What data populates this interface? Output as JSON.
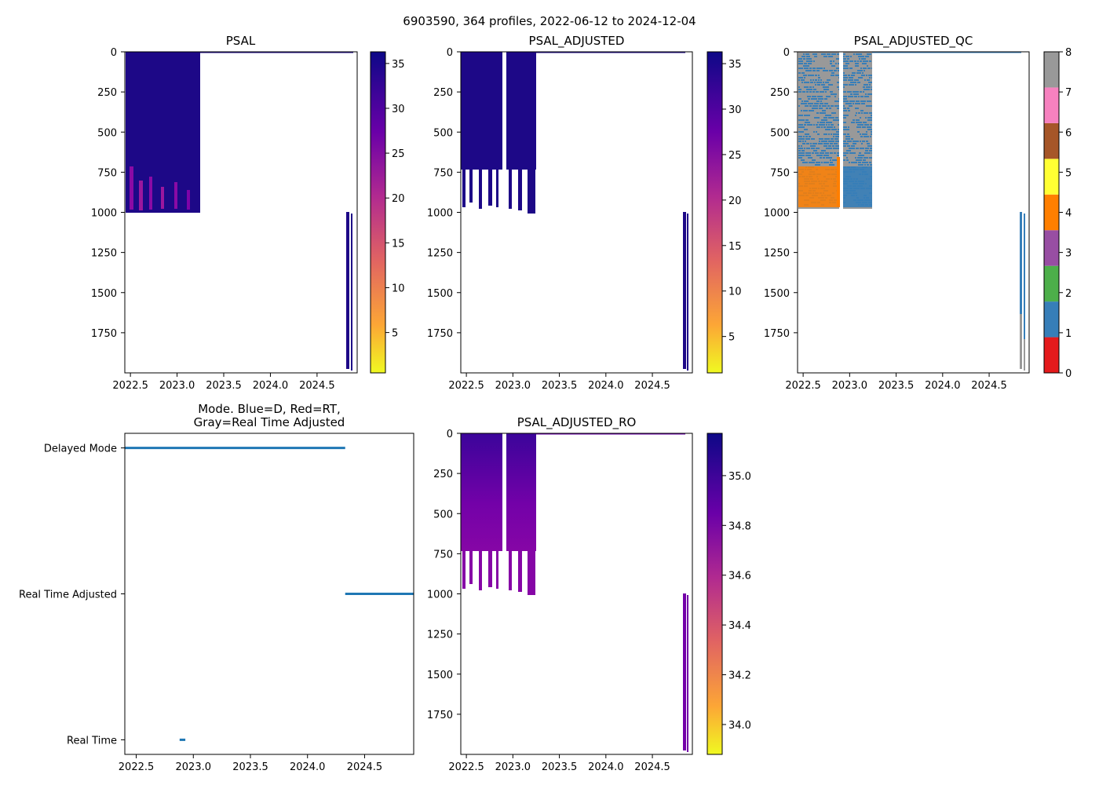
{
  "figure": {
    "suptitle": "6903590, 364 profiles, 2022-06-12 to 2024-12-04"
  },
  "chart_data": [
    {
      "type": "heatmap",
      "title": "PSAL",
      "x_ticks": [
        "2022.5",
        "2023.0",
        "2023.5",
        "2024.0",
        "2024.5"
      ],
      "x_tick_values": [
        2022.5,
        2023.0,
        2023.5,
        2024.0,
        2024.5
      ],
      "xlim": [
        2022.44,
        2024.93
      ],
      "y_ticks": [
        "0",
        "250",
        "500",
        "750",
        "1000",
        "1250",
        "1500",
        "1750"
      ],
      "y_tick_values": [
        0,
        250,
        500,
        750,
        1000,
        1250,
        1500,
        1750
      ],
      "ylim": [
        2000,
        0
      ],
      "colorbar": {
        "colormap": "plasma_r",
        "range": [
          0.5,
          36.3
        ],
        "ticks": [
          "5",
          "10",
          "15",
          "20",
          "25",
          "30",
          "35"
        ],
        "tick_values": [
          5,
          10,
          15,
          20,
          25,
          30,
          35
        ]
      },
      "fill_color": "#1d0887",
      "blocks": [
        {
          "x0": 2022.44,
          "x1": 2023.25,
          "depth_top": 0,
          "depth_bottom": 1000
        },
        {
          "x0": 2024.82,
          "x1": 2024.86,
          "depth_top": 1010,
          "depth_bottom": 1965
        }
      ],
      "low_salinity_band": {
        "depth_range": [
          730,
          985
        ],
        "color": "#8b0aa5"
      }
    },
    {
      "type": "heatmap",
      "title": "PSAL_ADJUSTED",
      "x_ticks": [
        "2022.5",
        "2023.0",
        "2023.5",
        "2024.0",
        "2024.5"
      ],
      "x_tick_values": [
        2022.5,
        2023.0,
        2023.5,
        2024.0,
        2024.5
      ],
      "xlim": [
        2022.44,
        2024.93
      ],
      "y_ticks": [
        "0",
        "250",
        "500",
        "750",
        "1000",
        "1250",
        "1500",
        "1750"
      ],
      "y_tick_values": [
        0,
        250,
        500,
        750,
        1000,
        1250,
        1500,
        1750
      ],
      "ylim": [
        2000,
        0
      ],
      "colorbar": {
        "colormap": "plasma_r",
        "range": [
          1.0,
          36.3
        ],
        "ticks": [
          "5",
          "10",
          "15",
          "20",
          "25",
          "30",
          "35"
        ],
        "tick_values": [
          5,
          10,
          15,
          20,
          25,
          30,
          35
        ]
      },
      "fill_color": "#1d0887",
      "blocks": [
        {
          "x0": 2022.44,
          "x1": 2022.89,
          "depth_top": 0,
          "depth_bottom": 740
        },
        {
          "x0": 2022.92,
          "x1": 2023.25,
          "depth_top": 0,
          "depth_bottom": 740
        },
        {
          "x0": 2024.82,
          "x1": 2024.86,
          "depth_top": 1010,
          "depth_bottom": 1965
        }
      ]
    },
    {
      "type": "heatmap",
      "title": "PSAL_ADJUSTED_QC",
      "x_ticks": [
        "2022.5",
        "2023.0",
        "2023.5",
        "2024.0",
        "2024.5"
      ],
      "x_tick_values": [
        2022.5,
        2023.0,
        2023.5,
        2024.0,
        2024.5
      ],
      "xlim": [
        2022.44,
        2024.93
      ],
      "y_ticks": [
        "0",
        "250",
        "500",
        "750",
        "1000",
        "1250",
        "1500",
        "1750"
      ],
      "y_tick_values": [
        0,
        250,
        500,
        750,
        1000,
        1250,
        1500,
        1750
      ],
      "ylim": [
        2000,
        0
      ],
      "colorbar": {
        "colormap": "Set1 (discrete)",
        "range": [
          0,
          8
        ],
        "ticks": [
          "0",
          "1",
          "2",
          "3",
          "4",
          "5",
          "6",
          "7",
          "8"
        ],
        "tick_values": [
          0,
          1,
          2,
          3,
          4,
          5,
          6,
          7,
          8
        ],
        "colors": [
          "#e41a1c",
          "#377eb8",
          "#4daf4a",
          "#984ea3",
          "#ff7f00",
          "#ffff33",
          "#a65628",
          "#f781bf",
          "#999999"
        ]
      },
      "flag_colors": {
        "flag_1": "#377eb8",
        "flag_4": "#ff7f00",
        "flag_8": "#999999"
      }
    },
    {
      "type": "scatter",
      "title": "Mode. Blue=D, Red=RT,\nGray=Real Time Adjusted",
      "title_lines": [
        "Mode. Blue=D, Red=RT,",
        "Gray=Real Time Adjusted"
      ],
      "x_ticks": [
        "2022.5",
        "2023.0",
        "2023.5",
        "2024.0",
        "2024.5"
      ],
      "x_tick_values": [
        2022.5,
        2023.0,
        2023.5,
        2024.0,
        2024.5
      ],
      "xlim": [
        2022.4,
        2024.93
      ],
      "y_categories": [
        "Delayed Mode",
        "Real Time Adjusted",
        "Real Time"
      ],
      "ylim": [
        -0.1,
        2.1
      ],
      "marker_color": "#1f77b4",
      "series": [
        {
          "name": "Delayed Mode",
          "y": 0,
          "x_range": [
            2022.4,
            2024.33
          ]
        },
        {
          "name": "Real Time Adjusted",
          "y": 1,
          "x_range": [
            2024.33,
            2024.93
          ]
        },
        {
          "name": "Real Time",
          "y": 2,
          "x_range": [
            2022.88,
            2022.93
          ]
        }
      ]
    },
    {
      "type": "heatmap",
      "title": "PSAL_ADJUSTED_RO",
      "x_ticks": [
        "2022.5",
        "2023.0",
        "2023.5",
        "2024.0",
        "2024.5"
      ],
      "x_tick_values": [
        2022.5,
        2023.0,
        2023.5,
        2024.0,
        2024.5
      ],
      "xlim": [
        2022.44,
        2024.93
      ],
      "y_ticks": [
        "0",
        "250",
        "500",
        "750",
        "1000",
        "1250",
        "1500",
        "1750"
      ],
      "y_tick_values": [
        0,
        250,
        500,
        750,
        1000,
        1250,
        1500,
        1750
      ],
      "ylim": [
        2000,
        0
      ],
      "colorbar": {
        "colormap": "plasma_r",
        "range": [
          33.88,
          35.17
        ],
        "ticks": [
          "34.0",
          "34.2",
          "34.4",
          "34.6",
          "34.8",
          "35.0"
        ],
        "tick_values": [
          34.0,
          34.2,
          34.4,
          34.6,
          34.8,
          35.0
        ]
      },
      "blocks": [
        {
          "x0": 2022.44,
          "x1": 2022.89,
          "depth_top": 0,
          "depth_bottom": 740
        },
        {
          "x0": 2022.92,
          "x1": 2023.25,
          "depth_top": 0,
          "depth_bottom": 740
        },
        {
          "x0": 2024.82,
          "x1": 2024.86,
          "depth_top": 1010,
          "depth_bottom": 1965
        }
      ]
    }
  ]
}
